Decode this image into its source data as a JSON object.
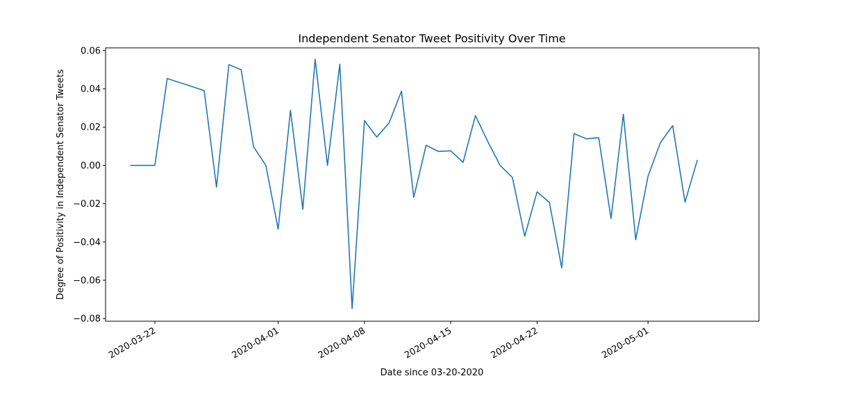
{
  "chart_data": {
    "type": "line",
    "title": "Independent Senator Tweet Positivity Over Time",
    "xlabel": "Date since 03-20-2020",
    "ylabel": "Degree of Positivity in Independent Senator Tweets",
    "grid": false,
    "x_is_date": true,
    "xlim": [
      "2020-03-18",
      "2020-05-10"
    ],
    "ylim": [
      -0.0814,
      0.0614
    ],
    "x_ticks": [
      "2020-03-22",
      "2020-04-01",
      "2020-04-08",
      "2020-04-15",
      "2020-04-22",
      "2020-05-01"
    ],
    "y_ticks": [
      0.06,
      0.04,
      0.02,
      0.0,
      -0.02,
      -0.04,
      -0.06,
      -0.08
    ],
    "y_tick_labels": [
      "0.06",
      "0.04",
      "0.02",
      "0.00",
      "−0.02",
      "−0.04",
      "−0.06",
      "−0.08"
    ],
    "series": [
      {
        "color": "#1f77b4",
        "x": [
          "2020-03-20",
          "2020-03-22",
          "2020-03-23",
          "2020-03-26",
          "2020-03-27",
          "2020-03-28",
          "2020-03-29",
          "2020-03-30",
          "2020-03-31",
          "2020-04-01",
          "2020-04-02",
          "2020-04-03",
          "2020-04-04",
          "2020-04-05",
          "2020-04-06",
          "2020-04-07",
          "2020-04-08",
          "2020-04-09",
          "2020-04-10",
          "2020-04-11",
          "2020-04-12",
          "2020-04-13",
          "2020-04-14",
          "2020-04-15",
          "2020-04-16",
          "2020-04-17",
          "2020-04-18",
          "2020-04-19",
          "2020-04-20",
          "2020-04-21",
          "2020-04-22",
          "2020-04-23",
          "2020-04-24",
          "2020-04-25",
          "2020-04-26",
          "2020-04-27",
          "2020-04-28",
          "2020-04-29",
          "2020-04-30",
          "2020-05-01",
          "2020-05-02",
          "2020-05-03",
          "2020-05-04",
          "2020-05-05"
        ],
        "y": [
          0.0,
          0.0,
          0.0454,
          0.0391,
          -0.0114,
          0.0526,
          0.05,
          0.0098,
          0.0,
          -0.0333,
          0.0288,
          -0.0229,
          0.0555,
          0.0,
          0.0529,
          -0.0748,
          0.0234,
          0.0148,
          0.0222,
          0.0388,
          -0.0167,
          0.0105,
          0.0073,
          0.0076,
          0.0016,
          0.026,
          0.0125,
          0.0,
          -0.0063,
          -0.037,
          -0.0138,
          -0.0193,
          -0.0535,
          0.0166,
          0.0139,
          0.0145,
          -0.0278,
          0.0267,
          -0.0388,
          -0.0057,
          0.0118,
          0.0208,
          -0.0192,
          0.0028
        ]
      }
    ]
  }
}
